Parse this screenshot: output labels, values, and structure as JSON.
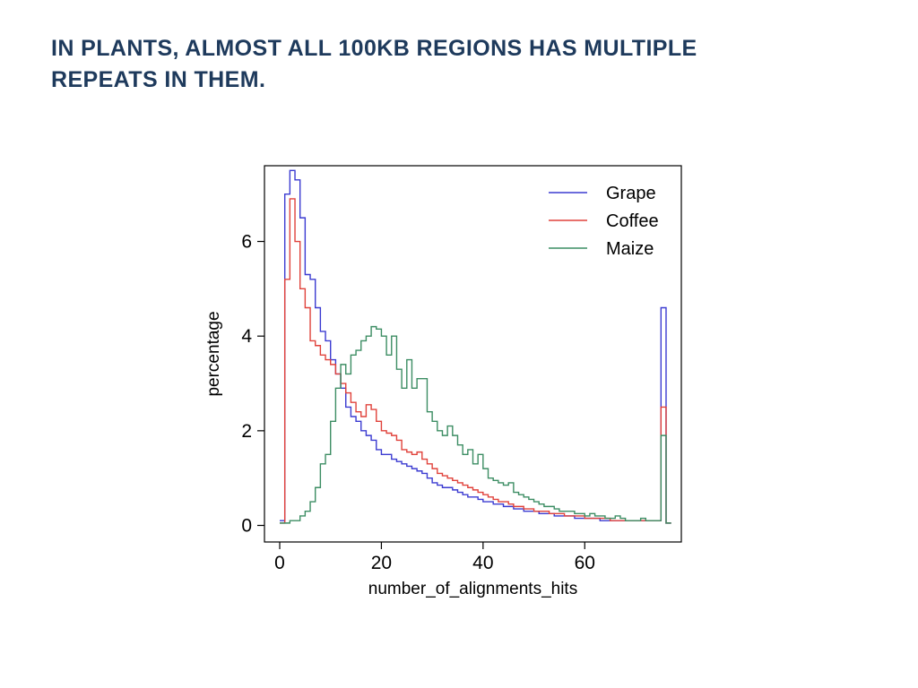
{
  "slide": {
    "title": "IN PLANTS, ALMOST ALL 100KB REGIONS HAS MULTIPLE REPEATS IN THEM.",
    "title_lines": [
      "IN PLANTS, ALMOST ALL 100KB REGIONS HAS MULTIPLE",
      "REPEATS IN THEM."
    ],
    "title_color": "#1e3a5c"
  },
  "chart_data": {
    "type": "line",
    "subtype": "step-histogram",
    "title": "",
    "xlabel": "number_of_alignments_hits",
    "ylabel": "percentage",
    "x_ticks": [
      0,
      20,
      40,
      60
    ],
    "y_ticks": [
      0,
      2,
      4,
      6
    ],
    "xlim": [
      -3,
      79
    ],
    "ylim": [
      -0.35,
      7.6
    ],
    "bin_width": 1,
    "bins_start_x": 0,
    "grid": false,
    "legend": {
      "position": "top-right",
      "entries": [
        "Grape",
        "Coffee",
        "Maize"
      ]
    },
    "series": [
      {
        "name": "Grape",
        "color": "#3b3bd1",
        "values": [
          0.1,
          7.0,
          7.5,
          7.3,
          6.5,
          5.3,
          5.2,
          4.6,
          4.1,
          3.9,
          3.5,
          3.2,
          2.9,
          2.5,
          2.3,
          2.2,
          2.0,
          1.9,
          1.8,
          1.6,
          1.5,
          1.5,
          1.4,
          1.35,
          1.3,
          1.25,
          1.2,
          1.15,
          1.1,
          1.0,
          0.9,
          0.85,
          0.8,
          0.8,
          0.75,
          0.7,
          0.65,
          0.6,
          0.6,
          0.55,
          0.5,
          0.5,
          0.45,
          0.45,
          0.4,
          0.4,
          0.35,
          0.35,
          0.3,
          0.3,
          0.3,
          0.25,
          0.25,
          0.25,
          0.2,
          0.2,
          0.2,
          0.2,
          0.15,
          0.15,
          0.15,
          0.15,
          0.15,
          0.1,
          0.1,
          0.1,
          0.1,
          0.1,
          0.1,
          0.1,
          0.1,
          0.1,
          0.1,
          0.1,
          0.1,
          4.6,
          0.05
        ]
      },
      {
        "name": "Coffee",
        "color": "#e0423b",
        "values": [
          0.05,
          5.2,
          6.9,
          6.0,
          5.0,
          4.6,
          3.9,
          3.8,
          3.6,
          3.5,
          3.4,
          3.2,
          3.0,
          2.8,
          2.6,
          2.4,
          2.3,
          2.55,
          2.45,
          2.2,
          2.0,
          1.95,
          1.9,
          1.8,
          1.6,
          1.55,
          1.5,
          1.55,
          1.4,
          1.3,
          1.2,
          1.1,
          1.05,
          1.0,
          0.95,
          0.9,
          0.85,
          0.8,
          0.75,
          0.7,
          0.65,
          0.6,
          0.55,
          0.5,
          0.5,
          0.45,
          0.4,
          0.4,
          0.35,
          0.35,
          0.3,
          0.3,
          0.3,
          0.25,
          0.25,
          0.25,
          0.2,
          0.2,
          0.2,
          0.2,
          0.15,
          0.15,
          0.15,
          0.15,
          0.15,
          0.1,
          0.1,
          0.1,
          0.1,
          0.1,
          0.1,
          0.1,
          0.1,
          0.1,
          0.1,
          2.5,
          0.05
        ]
      },
      {
        "name": "Maize",
        "color": "#3c8d63",
        "values": [
          0.05,
          0.05,
          0.1,
          0.1,
          0.2,
          0.3,
          0.5,
          0.8,
          1.3,
          1.5,
          2.2,
          2.9,
          3.4,
          3.2,
          3.6,
          3.7,
          3.9,
          4.0,
          4.2,
          4.15,
          4.0,
          3.6,
          4.0,
          3.3,
          2.9,
          3.5,
          2.9,
          3.1,
          3.1,
          2.4,
          2.2,
          2.0,
          1.9,
          2.1,
          1.9,
          1.7,
          1.5,
          1.6,
          1.3,
          1.5,
          1.2,
          1.0,
          0.95,
          0.9,
          0.85,
          0.9,
          0.7,
          0.65,
          0.6,
          0.55,
          0.5,
          0.45,
          0.4,
          0.4,
          0.35,
          0.3,
          0.3,
          0.3,
          0.25,
          0.25,
          0.2,
          0.25,
          0.2,
          0.2,
          0.15,
          0.15,
          0.2,
          0.15,
          0.1,
          0.1,
          0.1,
          0.15,
          0.1,
          0.1,
          0.1,
          1.9,
          0.05
        ]
      }
    ]
  }
}
